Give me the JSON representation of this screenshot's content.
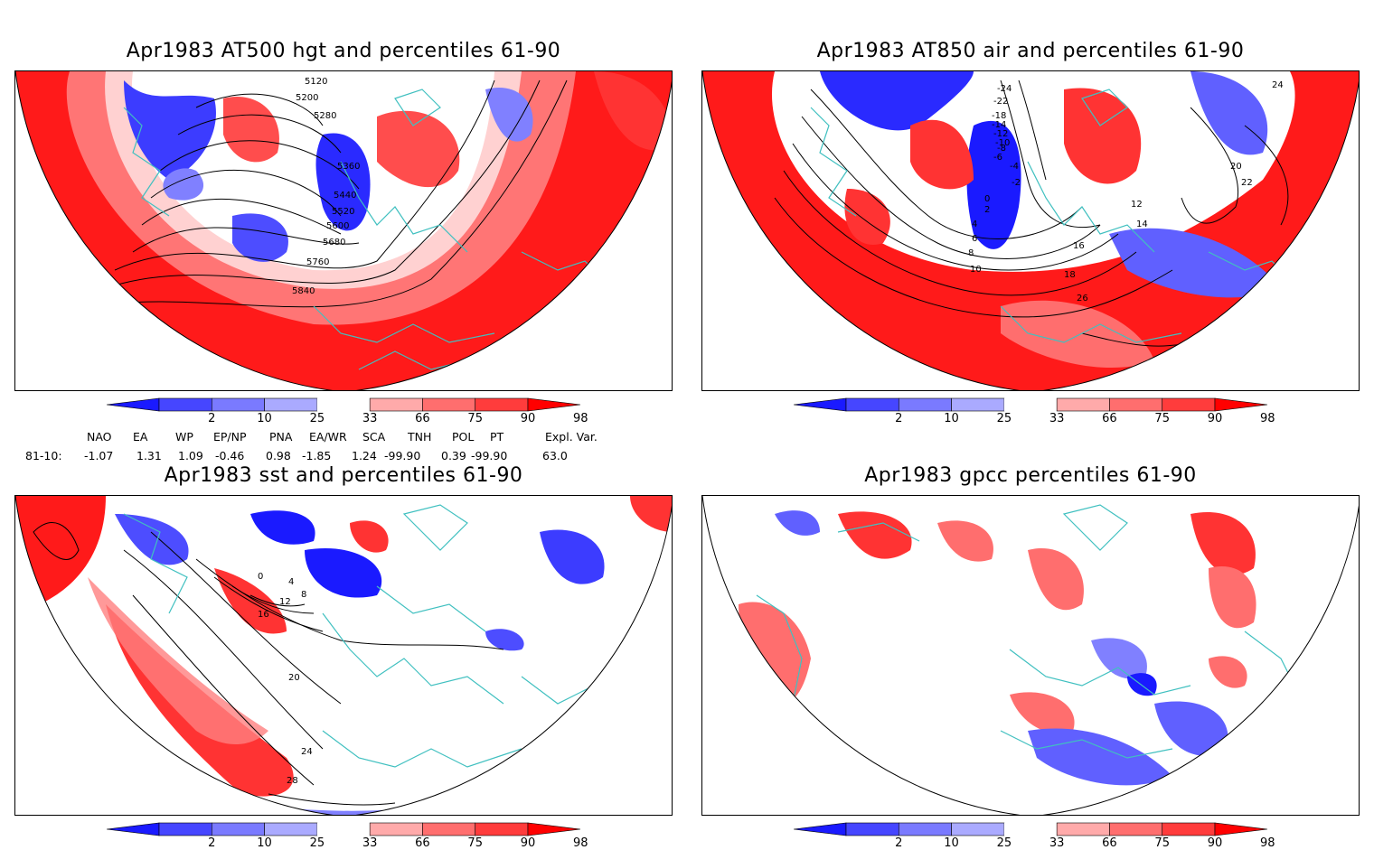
{
  "panels": [
    {
      "id": "p1",
      "title": "Apr1983 AT500 hgt and percentiles 61-90",
      "contour_labels": [
        "5120",
        "5200",
        "5280",
        "5360",
        "5440",
        "5520",
        "5600",
        "5680",
        "5760",
        "5840"
      ]
    },
    {
      "id": "p2",
      "title": "Apr1983 AT850 air and percentiles 61-90",
      "contour_labels": [
        "-24",
        "-22",
        "-18",
        "-14",
        "-12",
        "-10",
        "-8",
        "-6",
        "-4",
        "-2",
        "0",
        "2",
        "4",
        "6",
        "8",
        "10",
        "12",
        "14",
        "16",
        "18",
        "20",
        "22",
        "24",
        "26"
      ]
    },
    {
      "id": "p3",
      "title": "Apr1983 sst and percentiles 61-90",
      "contour_labels": [
        "0",
        "4",
        "8",
        "12",
        "16",
        "20",
        "24",
        "28"
      ]
    },
    {
      "id": "p4",
      "title": "Apr1983 gpcc percentiles 61-90",
      "contour_labels": []
    }
  ],
  "colorbar": {
    "labels": [
      "2",
      "10",
      "25",
      "33",
      "66",
      "75",
      "90",
      "98"
    ],
    "colors": [
      "#1a1aff",
      "#4646ff",
      "#7a7aff",
      "#aaaaff",
      "#ffffff",
      "#ffaaaa",
      "#ff6e6e",
      "#ff3c3c",
      "#ff0000"
    ]
  },
  "indices": {
    "headers": [
      "NAO",
      "EA",
      "WP",
      "EP/NP",
      "PNA",
      "EA/WR",
      "SCA",
      "TNH",
      "POL",
      "PT",
      "Expl. Var."
    ],
    "row_label": "81-10:",
    "values": [
      "-1.07",
      "1.31",
      "1.09",
      "-0.46",
      "0.98",
      "-1.85",
      "1.24",
      "-99.90",
      "0.39",
      "-99.90",
      "63.0"
    ]
  }
}
